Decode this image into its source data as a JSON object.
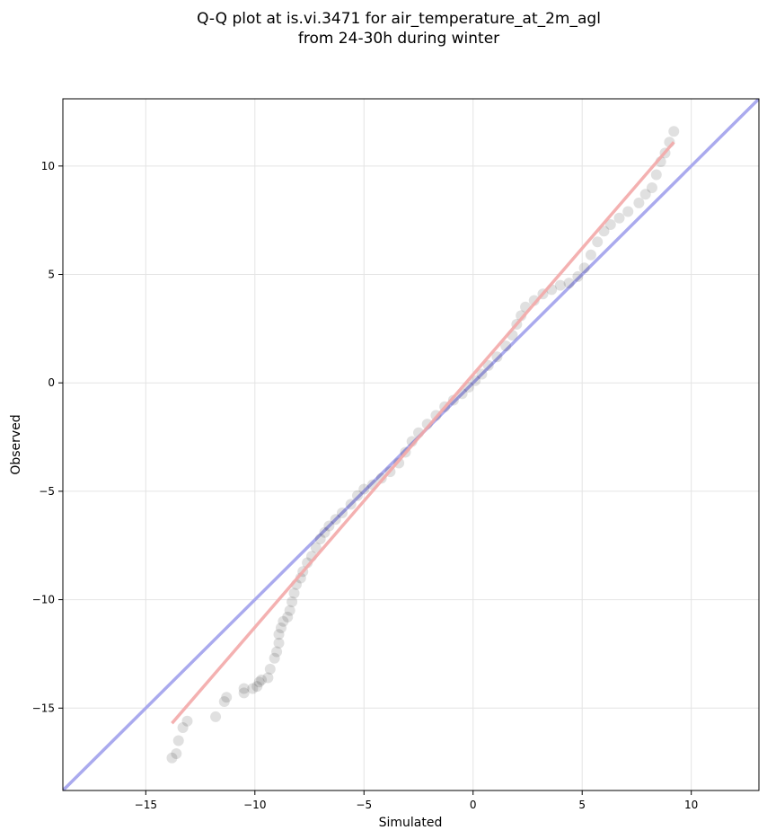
{
  "chart_data": {
    "type": "scatter",
    "title_lines": [
      "Q-Q plot at is.vi.3471 for air_temperature_at_2m_agl",
      "from 24-30h during winter"
    ],
    "xlabel": "Simulated",
    "ylabel": "Observed",
    "xlim": [
      -18.8,
      13.1
    ],
    "ylim": [
      -18.8,
      13.1
    ],
    "x_ticks": [
      -15,
      -10,
      -5,
      0,
      5,
      10
    ],
    "y_ticks": [
      -15,
      -10,
      -5,
      0,
      5,
      10
    ],
    "x_tick_labels": [
      "−15",
      "−10",
      "−5",
      "0",
      "5",
      "10"
    ],
    "y_tick_labels": [
      "−15",
      "−10",
      "−5",
      "0",
      "5",
      "10"
    ],
    "grid": true,
    "reference_line": {
      "name": "1:1",
      "color": "#aaaaee",
      "from": [
        -18.8,
        -18.8
      ],
      "to": [
        13.1,
        13.1
      ]
    },
    "fit_line": {
      "color": "#f3a8a8",
      "from": [
        -13.8,
        -15.7
      ],
      "to": [
        9.2,
        11.1
      ]
    },
    "point_color": "#000000",
    "points": [
      [
        -13.8,
        -17.3
      ],
      [
        -13.6,
        -17.1
      ],
      [
        -13.5,
        -16.5
      ],
      [
        -13.3,
        -15.9
      ],
      [
        -13.1,
        -15.6
      ],
      [
        -11.8,
        -15.4
      ],
      [
        -11.4,
        -14.7
      ],
      [
        -11.3,
        -14.5
      ],
      [
        -10.5,
        -14.3
      ],
      [
        -10.5,
        -14.1
      ],
      [
        -10.1,
        -14.1
      ],
      [
        -9.9,
        -14.0
      ],
      [
        -9.8,
        -13.8
      ],
      [
        -9.7,
        -13.7
      ],
      [
        -9.4,
        -13.6
      ],
      [
        -9.3,
        -13.2
      ],
      [
        -9.1,
        -12.7
      ],
      [
        -9.0,
        -12.4
      ],
      [
        -8.9,
        -12.0
      ],
      [
        -8.9,
        -11.6
      ],
      [
        -8.8,
        -11.3
      ],
      [
        -8.7,
        -11.0
      ],
      [
        -8.5,
        -10.8
      ],
      [
        -8.4,
        -10.5
      ],
      [
        -8.3,
        -10.1
      ],
      [
        -8.2,
        -9.7
      ],
      [
        -8.1,
        -9.3
      ],
      [
        -7.9,
        -9.0
      ],
      [
        -7.8,
        -8.7
      ],
      [
        -7.6,
        -8.3
      ],
      [
        -7.4,
        -8.0
      ],
      [
        -7.2,
        -7.6
      ],
      [
        -7.0,
        -7.2
      ],
      [
        -6.8,
        -6.9
      ],
      [
        -6.6,
        -6.6
      ],
      [
        -6.3,
        -6.3
      ],
      [
        -6.0,
        -6.0
      ],
      [
        -5.6,
        -5.6
      ],
      [
        -5.3,
        -5.2
      ],
      [
        -5.0,
        -4.9
      ],
      [
        -4.6,
        -4.7
      ],
      [
        -4.2,
        -4.4
      ],
      [
        -3.8,
        -4.1
      ],
      [
        -3.4,
        -3.7
      ],
      [
        -3.1,
        -3.2
      ],
      [
        -2.8,
        -2.7
      ],
      [
        -2.5,
        -2.3
      ],
      [
        -2.1,
        -1.9
      ],
      [
        -1.7,
        -1.5
      ],
      [
        -1.3,
        -1.1
      ],
      [
        -0.9,
        -0.8
      ],
      [
        -0.5,
        -0.5
      ],
      [
        -0.2,
        -0.2
      ],
      [
        0.1,
        0.1
      ],
      [
        0.4,
        0.4
      ],
      [
        0.7,
        0.8
      ],
      [
        1.1,
        1.2
      ],
      [
        1.5,
        1.7
      ],
      [
        1.8,
        2.2
      ],
      [
        2.0,
        2.7
      ],
      [
        2.2,
        3.1
      ],
      [
        2.4,
        3.5
      ],
      [
        2.8,
        3.8
      ],
      [
        3.2,
        4.1
      ],
      [
        3.6,
        4.3
      ],
      [
        4.0,
        4.5
      ],
      [
        4.4,
        4.6
      ],
      [
        4.8,
        4.9
      ],
      [
        5.1,
        5.3
      ],
      [
        5.4,
        5.9
      ],
      [
        5.7,
        6.5
      ],
      [
        6.0,
        7.0
      ],
      [
        6.3,
        7.3
      ],
      [
        6.7,
        7.6
      ],
      [
        7.1,
        7.9
      ],
      [
        7.6,
        8.3
      ],
      [
        7.9,
        8.7
      ],
      [
        8.2,
        9.0
      ],
      [
        8.4,
        9.6
      ],
      [
        8.6,
        10.2
      ],
      [
        8.8,
        10.6
      ],
      [
        9.0,
        11.1
      ],
      [
        9.2,
        11.6
      ]
    ]
  }
}
